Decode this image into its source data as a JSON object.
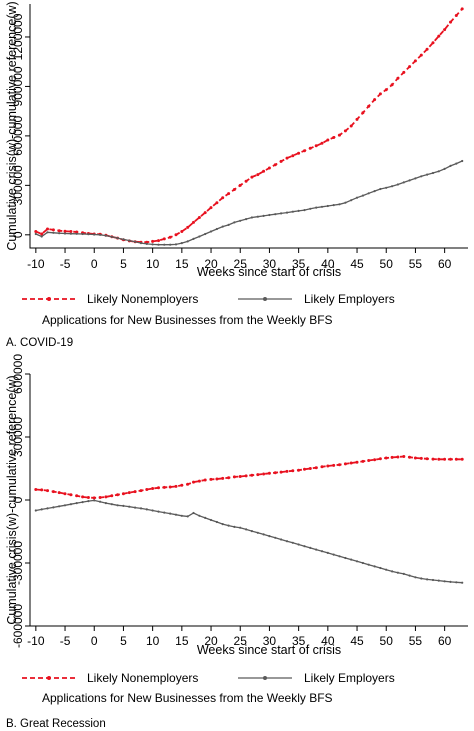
{
  "chart_data": [
    {
      "type": "line",
      "panel_label": "A.   COVID-19",
      "note": "Applications for New Businesses from the Weekly BFS",
      "xlabel": "Weeks since start of crisis",
      "ylabel": "Cumulative crisis(w)-cumulative reference(w)",
      "xlim": [
        -11,
        64
      ],
      "ylim": [
        -80000,
        1400000
      ],
      "xticks": [
        -10,
        -5,
        0,
        5,
        10,
        15,
        20,
        25,
        30,
        35,
        40,
        45,
        50,
        55,
        60
      ],
      "yticks": [
        0,
        300000,
        600000,
        900000,
        1200000
      ],
      "ytick_labels": [
        "0",
        "300000",
        "600000",
        "900000",
        "1200000"
      ],
      "grid": false,
      "legend_position": "bottom",
      "series": [
        {
          "name": "Likely Nonemployers",
          "color": "#e8111f",
          "style": "dashed-dot",
          "x": [
            -10,
            -9,
            -8,
            -7,
            -6,
            -5,
            -4,
            -3,
            -2,
            -1,
            0,
            1,
            2,
            3,
            4,
            5,
            6,
            7,
            8,
            9,
            10,
            11,
            12,
            13,
            14,
            15,
            16,
            17,
            18,
            19,
            20,
            21,
            22,
            23,
            24,
            25,
            26,
            27,
            28,
            29,
            30,
            31,
            32,
            33,
            34,
            35,
            36,
            37,
            38,
            39,
            40,
            41,
            42,
            43,
            44,
            45,
            46,
            47,
            48,
            49,
            50,
            51,
            52,
            53,
            54,
            55,
            56,
            57,
            58,
            59,
            60,
            61,
            62,
            63
          ],
          "values": [
            20000,
            5000,
            35000,
            30000,
            25000,
            22000,
            20000,
            17000,
            12000,
            8000,
            5000,
            3000,
            -3000,
            -12000,
            -20000,
            -30000,
            -37000,
            -42000,
            -45000,
            -45000,
            -40000,
            -35000,
            -25000,
            -15000,
            0,
            20000,
            45000,
            75000,
            105000,
            135000,
            165000,
            195000,
            225000,
            250000,
            275000,
            300000,
            325000,
            350000,
            365000,
            385000,
            405000,
            425000,
            445000,
            465000,
            480000,
            495000,
            510000,
            525000,
            540000,
            555000,
            575000,
            590000,
            605000,
            630000,
            660000,
            700000,
            740000,
            780000,
            820000,
            855000,
            880000,
            910000,
            950000,
            985000,
            1020000,
            1055000,
            1090000,
            1125000,
            1165000,
            1205000,
            1245000,
            1290000,
            1330000,
            1370000
          ]
        },
        {
          "name": "Likely Employers",
          "color": "#5a5a5a",
          "style": "solid-dot",
          "x": [
            -10,
            -9,
            -8,
            -7,
            -6,
            -5,
            -4,
            -3,
            -2,
            -1,
            0,
            1,
            2,
            3,
            4,
            5,
            6,
            7,
            8,
            9,
            10,
            11,
            12,
            13,
            14,
            15,
            16,
            17,
            18,
            19,
            20,
            21,
            22,
            23,
            24,
            25,
            26,
            27,
            28,
            29,
            30,
            31,
            32,
            33,
            34,
            35,
            36,
            37,
            38,
            39,
            40,
            41,
            42,
            43,
            44,
            45,
            46,
            47,
            48,
            49,
            50,
            51,
            52,
            53,
            54,
            55,
            56,
            57,
            58,
            59,
            60,
            61,
            62,
            63
          ],
          "values": [
            5000,
            -10000,
            15000,
            12000,
            10000,
            8000,
            7000,
            6000,
            5000,
            4000,
            2000,
            0,
            -5000,
            -12000,
            -20000,
            -28000,
            -35000,
            -42000,
            -50000,
            -55000,
            -58000,
            -60000,
            -60000,
            -60000,
            -58000,
            -50000,
            -40000,
            -25000,
            -10000,
            5000,
            20000,
            35000,
            50000,
            60000,
            75000,
            85000,
            95000,
            105000,
            110000,
            115000,
            120000,
            125000,
            130000,
            135000,
            140000,
            145000,
            150000,
            158000,
            165000,
            170000,
            175000,
            180000,
            185000,
            195000,
            210000,
            225000,
            238000,
            252000,
            265000,
            278000,
            285000,
            295000,
            305000,
            318000,
            330000,
            342000,
            355000,
            365000,
            375000,
            385000,
            400000,
            418000,
            432000,
            448000
          ]
        }
      ]
    },
    {
      "type": "line",
      "panel_label": "B.   Great Recession",
      "note": "Applications for New Businesses from the Weekly BFS",
      "xlabel": "Weeks since start of crisis",
      "ylabel": "Cumulative crisis(w)-cumulative reference(w)",
      "xlim": [
        -11,
        64
      ],
      "ylim": [
        -600000,
        600000
      ],
      "xticks": [
        -10,
        -5,
        0,
        5,
        10,
        15,
        20,
        25,
        30,
        35,
        40,
        45,
        50,
        55,
        60
      ],
      "yticks": [
        -600000,
        -300000,
        0,
        300000,
        600000
      ],
      "ytick_labels": [
        "-600000",
        "-300000",
        "0",
        "300000",
        "600000"
      ],
      "grid": false,
      "legend_position": "bottom",
      "series": [
        {
          "name": "Likely Nonemployers",
          "color": "#e8111f",
          "style": "dashed-dot",
          "x": [
            -10,
            -9,
            -8,
            -7,
            -6,
            -5,
            -4,
            -3,
            -2,
            -1,
            0,
            1,
            2,
            3,
            4,
            5,
            6,
            7,
            8,
            9,
            10,
            11,
            12,
            13,
            14,
            15,
            16,
            17,
            18,
            19,
            20,
            21,
            22,
            23,
            24,
            25,
            26,
            27,
            28,
            29,
            30,
            31,
            32,
            33,
            34,
            35,
            36,
            37,
            38,
            39,
            40,
            41,
            42,
            43,
            44,
            45,
            46,
            47,
            48,
            49,
            50,
            51,
            52,
            53,
            54,
            55,
            56,
            57,
            58,
            59,
            60,
            61,
            62,
            63
          ],
          "values": [
            50000,
            48000,
            45000,
            40000,
            35000,
            30000,
            25000,
            20000,
            15000,
            12000,
            10000,
            12000,
            15000,
            20000,
            25000,
            30000,
            35000,
            40000,
            45000,
            50000,
            55000,
            58000,
            60000,
            62000,
            65000,
            70000,
            75000,
            85000,
            90000,
            95000,
            98000,
            100000,
            103000,
            106000,
            110000,
            112000,
            115000,
            118000,
            121000,
            124000,
            127000,
            130000,
            133000,
            136000,
            139000,
            142000,
            146000,
            150000,
            154000,
            158000,
            162000,
            165000,
            168000,
            172000,
            176000,
            180000,
            184000,
            188000,
            192000,
            196000,
            200000,
            203000,
            205000,
            207000,
            204000,
            200000,
            198000,
            196000,
            195000,
            194000,
            194000,
            194000,
            194000,
            194000
          ]
        },
        {
          "name": "Likely Employers",
          "color": "#5a5a5a",
          "style": "solid-dot",
          "x": [
            -10,
            -9,
            -8,
            -7,
            -6,
            -5,
            -4,
            -3,
            -2,
            -1,
            0,
            1,
            2,
            3,
            4,
            5,
            6,
            7,
            8,
            9,
            10,
            11,
            12,
            13,
            14,
            15,
            16,
            17,
            18,
            19,
            20,
            21,
            22,
            23,
            24,
            25,
            26,
            27,
            28,
            29,
            30,
            31,
            32,
            33,
            34,
            35,
            36,
            37,
            38,
            39,
            40,
            41,
            42,
            43,
            44,
            45,
            46,
            47,
            48,
            49,
            50,
            51,
            52,
            53,
            54,
            55,
            56,
            57,
            58,
            59,
            60,
            61,
            62,
            63
          ],
          "values": [
            -50000,
            -45000,
            -40000,
            -35000,
            -30000,
            -25000,
            -20000,
            -15000,
            -10000,
            -5000,
            -2000,
            -8000,
            -15000,
            -20000,
            -25000,
            -28000,
            -32000,
            -36000,
            -40000,
            -45000,
            -50000,
            -55000,
            -60000,
            -65000,
            -70000,
            -75000,
            -78000,
            -62000,
            -75000,
            -85000,
            -95000,
            -105000,
            -115000,
            -122000,
            -128000,
            -132000,
            -140000,
            -148000,
            -156000,
            -164000,
            -172000,
            -180000,
            -188000,
            -196000,
            -204000,
            -212000,
            -220000,
            -228000,
            -236000,
            -244000,
            -252000,
            -260000,
            -268000,
            -276000,
            -284000,
            -292000,
            -300000,
            -308000,
            -316000,
            -324000,
            -332000,
            -340000,
            -346000,
            -352000,
            -360000,
            -368000,
            -374000,
            -378000,
            -381000,
            -384000,
            -387000,
            -390000,
            -392000,
            -394000
          ]
        }
      ]
    }
  ]
}
